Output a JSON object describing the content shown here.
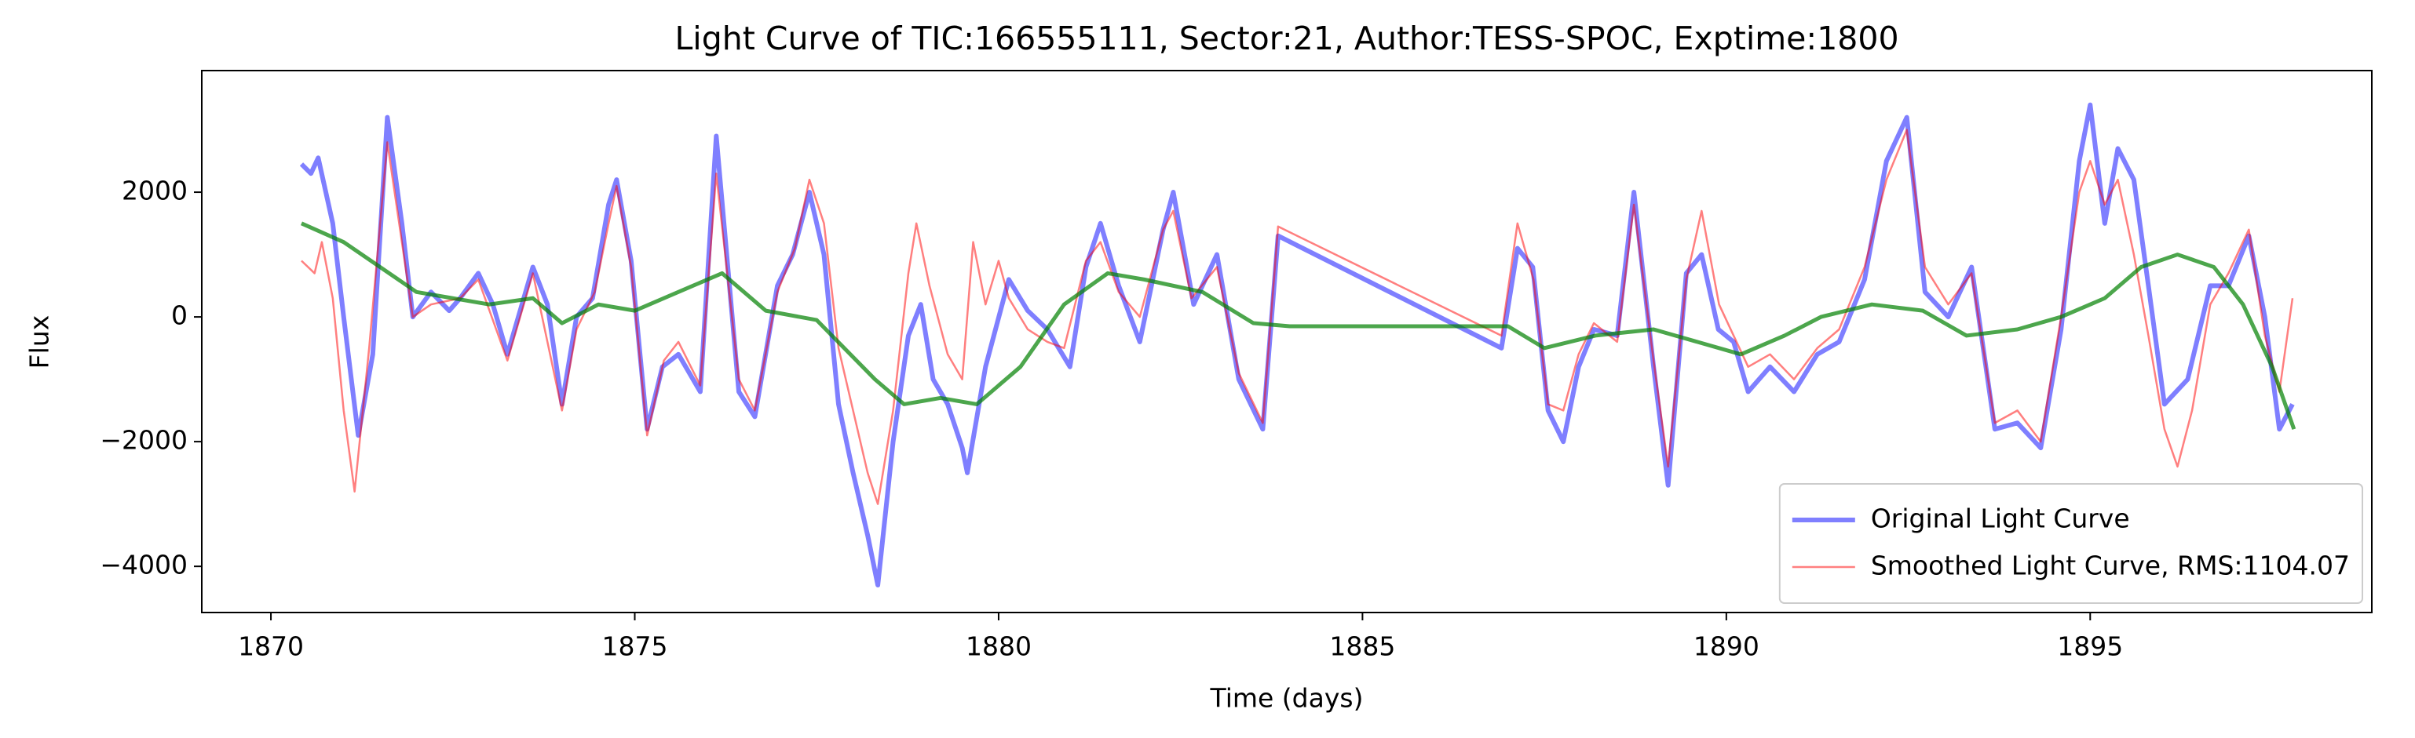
{
  "chart_data": {
    "type": "line",
    "title": "Light Curve of TIC:166555111, Sector:21, Author:TESS-SPOC, Exptime:1800",
    "xlabel": "Time (days)",
    "ylabel": "Flux",
    "xlim": [
      1869.05,
      1898.87
    ],
    "ylim": [
      -4740,
      3950
    ],
    "xticks": [
      1870,
      1875,
      1880,
      1885,
      1890,
      1895
    ],
    "yticks": [
      {
        "value": -4000,
        "label": "−4000"
      },
      {
        "value": -2000,
        "label": "−2000"
      },
      0,
      2000
    ],
    "legend_position": "lower right",
    "series": [
      {
        "name": "Original Light Curve",
        "color": "#0000ff",
        "x": [
          1870.42,
          1870.55,
          1870.65,
          1870.85,
          1871.0,
          1871.2,
          1871.4,
          1871.6,
          1871.8,
          1871.95,
          1872.2,
          1872.45,
          1872.6,
          1872.85,
          1873.05,
          1873.25,
          1873.6,
          1873.8,
          1874.0,
          1874.2,
          1874.42,
          1874.64,
          1874.75,
          1874.95,
          1875.17,
          1875.38,
          1875.6,
          1875.9,
          1876.12,
          1876.43,
          1876.65,
          1876.96,
          1877.17,
          1877.4,
          1877.6,
          1877.8,
          1878.0,
          1878.2,
          1878.34,
          1878.55,
          1878.76,
          1878.93,
          1879.1,
          1879.3,
          1879.5,
          1879.57,
          1879.82,
          1880.14,
          1880.4,
          1880.67,
          1880.98,
          1881.2,
          1881.4,
          1881.65,
          1881.94,
          1882.26,
          1882.4,
          1882.68,
          1883.0,
          1883.3,
          1883.63,
          1883.84,
          1886.91,
          1887.13,
          1887.34,
          1887.55,
          1887.76,
          1887.97,
          1888.18,
          1888.5,
          1888.73,
          1889.0,
          1889.2,
          1889.45,
          1889.66,
          1889.89,
          1890.1,
          1890.3,
          1890.6,
          1890.93,
          1891.25,
          1891.55,
          1891.9,
          1892.2,
          1892.48,
          1892.73,
          1893.05,
          1893.37,
          1893.69,
          1894.0,
          1894.32,
          1894.6,
          1894.85,
          1895.0,
          1895.2,
          1895.38,
          1895.6,
          1895.8,
          1896.02,
          1896.34,
          1896.65,
          1896.9,
          1897.18,
          1897.4,
          1897.6,
          1897.78
        ],
        "values": [
          2450,
          2300,
          2550,
          1500,
          0,
          -1900,
          -600,
          3200,
          1500,
          0,
          400,
          100,
          300,
          700,
          200,
          -600,
          800,
          200,
          -1400,
          0,
          300,
          1800,
          2200,
          900,
          -1800,
          -800,
          -600,
          -1200,
          2900,
          -1200,
          -1600,
          500,
          1000,
          2000,
          1000,
          -1400,
          -2500,
          -3500,
          -4300,
          -2000,
          -300,
          200,
          -1000,
          -1400,
          -2100,
          -2500,
          -800,
          600,
          100,
          -200,
          -800,
          800,
          1500,
          500,
          -400,
          1400,
          2000,
          200,
          1000,
          -1000,
          -1800,
          1300,
          -500,
          1100,
          800,
          -1500,
          -2000,
          -800,
          -200,
          -300,
          2000,
          -800,
          -2700,
          700,
          1000,
          -200,
          -400,
          -1200,
          -800,
          -1200,
          -600,
          -400,
          600,
          2500,
          3200,
          400,
          0,
          800,
          -1800,
          -1700,
          -2100,
          -200,
          2500,
          3400,
          1500,
          2700,
          2200,
          500,
          -1400,
          -1000,
          500,
          500,
          1300,
          0,
          -1800,
          -1400
        ]
      },
      {
        "name": "Smoothed Light Curve, RMS:1104.07",
        "color": "#ff0000",
        "x": [
          1870.42,
          1870.6,
          1870.7,
          1870.85,
          1871.0,
          1871.15,
          1871.35,
          1871.6,
          1871.95,
          1872.2,
          1872.6,
          1872.85,
          1873.25,
          1873.6,
          1874.0,
          1874.2,
          1874.45,
          1874.64,
          1874.75,
          1874.95,
          1875.17,
          1875.4,
          1875.6,
          1875.9,
          1876.12,
          1876.43,
          1876.65,
          1876.96,
          1877.2,
          1877.4,
          1877.6,
          1877.8,
          1878.0,
          1878.2,
          1878.34,
          1878.55,
          1878.76,
          1878.87,
          1879.05,
          1879.3,
          1879.5,
          1879.65,
          1879.82,
          1880.0,
          1880.14,
          1880.4,
          1880.67,
          1880.9,
          1881.2,
          1881.4,
          1881.65,
          1881.94,
          1882.26,
          1882.4,
          1882.65,
          1883.0,
          1883.3,
          1883.63,
          1883.84,
          1886.91,
          1887.13,
          1887.35,
          1887.55,
          1887.76,
          1887.97,
          1888.18,
          1888.5,
          1888.73,
          1889.0,
          1889.2,
          1889.45,
          1889.66,
          1889.9,
          1890.1,
          1890.3,
          1890.6,
          1890.93,
          1891.25,
          1891.55,
          1891.9,
          1892.2,
          1892.48,
          1892.73,
          1893.05,
          1893.37,
          1893.69,
          1894.0,
          1894.32,
          1894.6,
          1894.85,
          1895.0,
          1895.2,
          1895.38,
          1895.6,
          1895.8,
          1896.02,
          1896.2,
          1896.4,
          1896.65,
          1896.9,
          1897.18,
          1897.4,
          1897.6,
          1897.78
        ],
        "values": [
          900,
          700,
          1200,
          300,
          -1500,
          -2800,
          -500,
          2800,
          0,
          200,
          300,
          600,
          -700,
          700,
          -1500,
          -200,
          400,
          1500,
          2100,
          800,
          -1900,
          -700,
          -400,
          -1100,
          2300,
          -1000,
          -1500,
          400,
          1100,
          2200,
          1500,
          -500,
          -1500,
          -2500,
          -3000,
          -1500,
          700,
          1500,
          500,
          -600,
          -1000,
          1200,
          200,
          900,
          300,
          -200,
          -400,
          -500,
          900,
          1200,
          400,
          0,
          1400,
          1700,
          300,
          800,
          -900,
          -1700,
          1450,
          -300,
          1500,
          600,
          -1400,
          -1500,
          -600,
          -100,
          -400,
          1800,
          -700,
          -2400,
          600,
          1700,
          200,
          -300,
          -800,
          -600,
          -1000,
          -500,
          -200,
          800,
          2200,
          3000,
          800,
          200,
          700,
          -1700,
          -1500,
          -2000,
          0,
          2000,
          2500,
          1800,
          2200,
          1000,
          -300,
          -1800,
          -2400,
          -1500,
          200,
          700,
          1400,
          -300,
          -1200,
          300
        ]
      },
      {
        "color": "#008000",
        "x": [
          1870.42,
          1871.0,
          1872.0,
          1873.0,
          1873.6,
          1874.0,
          1874.5,
          1875.0,
          1875.8,
          1876.2,
          1876.8,
          1877.5,
          1878.3,
          1878.7,
          1879.2,
          1879.7,
          1880.3,
          1880.9,
          1881.5,
          1882.0,
          1882.8,
          1883.5,
          1884.0,
          1887.0,
          1887.5,
          1888.2,
          1889.0,
          1889.6,
          1890.2,
          1890.8,
          1891.3,
          1892.0,
          1892.7,
          1893.3,
          1894.0,
          1894.6,
          1895.2,
          1895.7,
          1896.2,
          1896.7,
          1897.1,
          1897.5,
          1897.8
        ],
        "values": [
          1500,
          1200,
          400,
          200,
          300,
          -100,
          200,
          100,
          500,
          700,
          100,
          -50,
          -1000,
          -1400,
          -1300,
          -1400,
          -800,
          200,
          700,
          600,
          400,
          -100,
          -150,
          -150,
          -500,
          -300,
          -200,
          -400,
          -600,
          -300,
          0,
          200,
          100,
          -300,
          -200,
          0,
          300,
          800,
          1000,
          800,
          200,
          -800,
          -1800
        ]
      }
    ]
  }
}
